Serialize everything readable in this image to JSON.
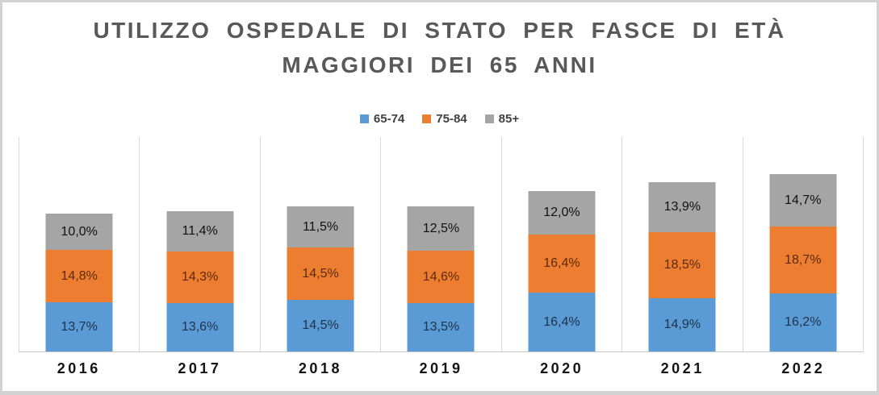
{
  "chart_data": {
    "type": "bar",
    "variant": "stacked-column",
    "title": "UTILIZZO OSPEDALE DI STATO PER FASCE DI ETÀ\nMAGGIORI DEI 65 ANNI",
    "categories": [
      "2016",
      "2017",
      "2018",
      "2019",
      "2020",
      "2021",
      "2022"
    ],
    "series": [
      {
        "name": "65-74",
        "color": "#5B9BD5",
        "label_color": "#1F3249",
        "values": [
          13.7,
          13.6,
          14.5,
          13.5,
          16.4,
          14.9,
          16.2
        ]
      },
      {
        "name": "75-84",
        "color": "#ED7D31",
        "label_color": "#5D2A07",
        "values": [
          14.8,
          14.3,
          14.5,
          14.6,
          16.4,
          18.5,
          18.7
        ]
      },
      {
        "name": "85+",
        "color": "#A5A5A5",
        "label_color": "#111111",
        "values": [
          10.0,
          11.4,
          11.5,
          12.5,
          12.0,
          13.9,
          14.7
        ]
      }
    ],
    "value_format": "percent, one decimal, comma as decimal separator",
    "xlabel": "",
    "ylabel": "",
    "ylim": [
      0,
      60
    ],
    "y_axis_visible": false,
    "grid": "vertical lines at category boundaries only",
    "legend_position": "top-center",
    "stack_order_bottom_to_top": [
      "65-74",
      "75-84",
      "85+"
    ]
  },
  "colors": {
    "background": "#FFFFFF",
    "chart_border": "#D2D2D2",
    "title_text": "#595959",
    "legend_text": "#404040",
    "axis_label_text": "#141414",
    "gridline": "#D9D9D9",
    "axis_line": "#C9C9C9"
  }
}
